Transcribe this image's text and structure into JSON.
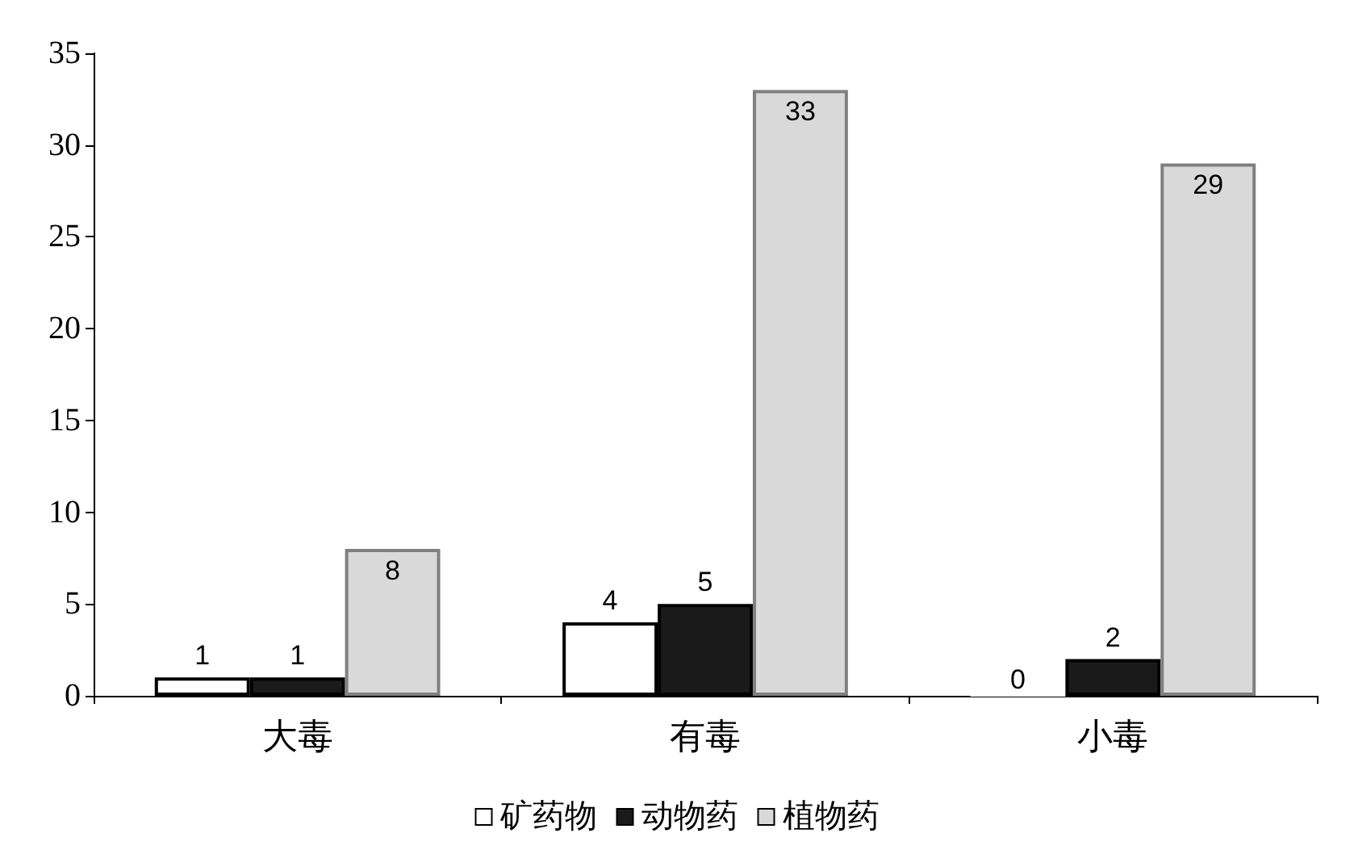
{
  "chart_data": {
    "type": "bar",
    "categories": [
      "大毒",
      "有毒",
      "小毒"
    ],
    "series": [
      {
        "name": "矿药物",
        "color": "#ffffff",
        "values": [
          1,
          4,
          0
        ]
      },
      {
        "name": "动物药",
        "color": "#1a1a1a",
        "values": [
          1,
          5,
          2
        ]
      },
      {
        "name": "植物药",
        "color": "#d9d9d9",
        "values": [
          8,
          33,
          29
        ]
      }
    ],
    "ylim": [
      0,
      35
    ],
    "yticks": [
      0,
      5,
      10,
      15,
      20,
      25,
      30,
      35
    ],
    "grid": false,
    "legend": "bottom",
    "data_labels": true
  }
}
